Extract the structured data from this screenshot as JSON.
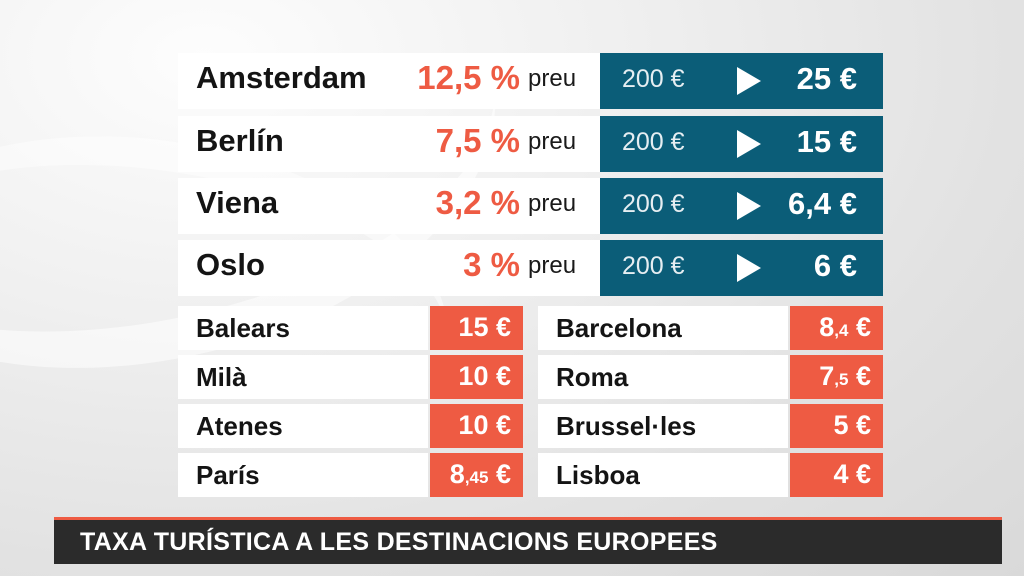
{
  "main_rows": [
    {
      "city": "Amsterdam",
      "pct": "12,5 %",
      "preu": "preu",
      "base": "200 €",
      "result": "25 €"
    },
    {
      "city": "Berlín",
      "pct": "7,5 %",
      "preu": "preu",
      "base": "200 €",
      "result": "15 €"
    },
    {
      "city": "Viena",
      "pct": "3,2 %",
      "preu": "preu",
      "base": "200 €",
      "result": "6,4 €"
    },
    {
      "city": "Oslo",
      "pct": "3 %",
      "preu": "preu",
      "base": "200 €",
      "result": "6 €"
    }
  ],
  "left_list": [
    {
      "city": "Balears",
      "int": "15",
      "dec": "",
      "cur": " €"
    },
    {
      "city": "Milà",
      "int": "10",
      "dec": "",
      "cur": " €"
    },
    {
      "city": "Atenes",
      "int": "10",
      "dec": "",
      "cur": " €"
    },
    {
      "city": "París",
      "int": "8",
      "dec": ",45",
      "cur": " €"
    }
  ],
  "right_list": [
    {
      "city": "Barcelona",
      "int": "8",
      "dec": ",4",
      "cur": " €"
    },
    {
      "city": "Roma",
      "int": "7",
      "dec": ",5",
      "cur": " €"
    },
    {
      "city": "Brussel·les",
      "int": "5",
      "dec": "",
      "cur": " €"
    },
    {
      "city": "Lisboa",
      "int": "4",
      "dec": "",
      "cur": " €"
    }
  ],
  "ticker": {
    "text": "TAXA TURÍSTICA A LES DESTINACIONS EUROPEES"
  },
  "colors": {
    "accent": "#ee5b43",
    "blue": "#0b5d78",
    "ticker_bg": "#2b2b2b"
  }
}
